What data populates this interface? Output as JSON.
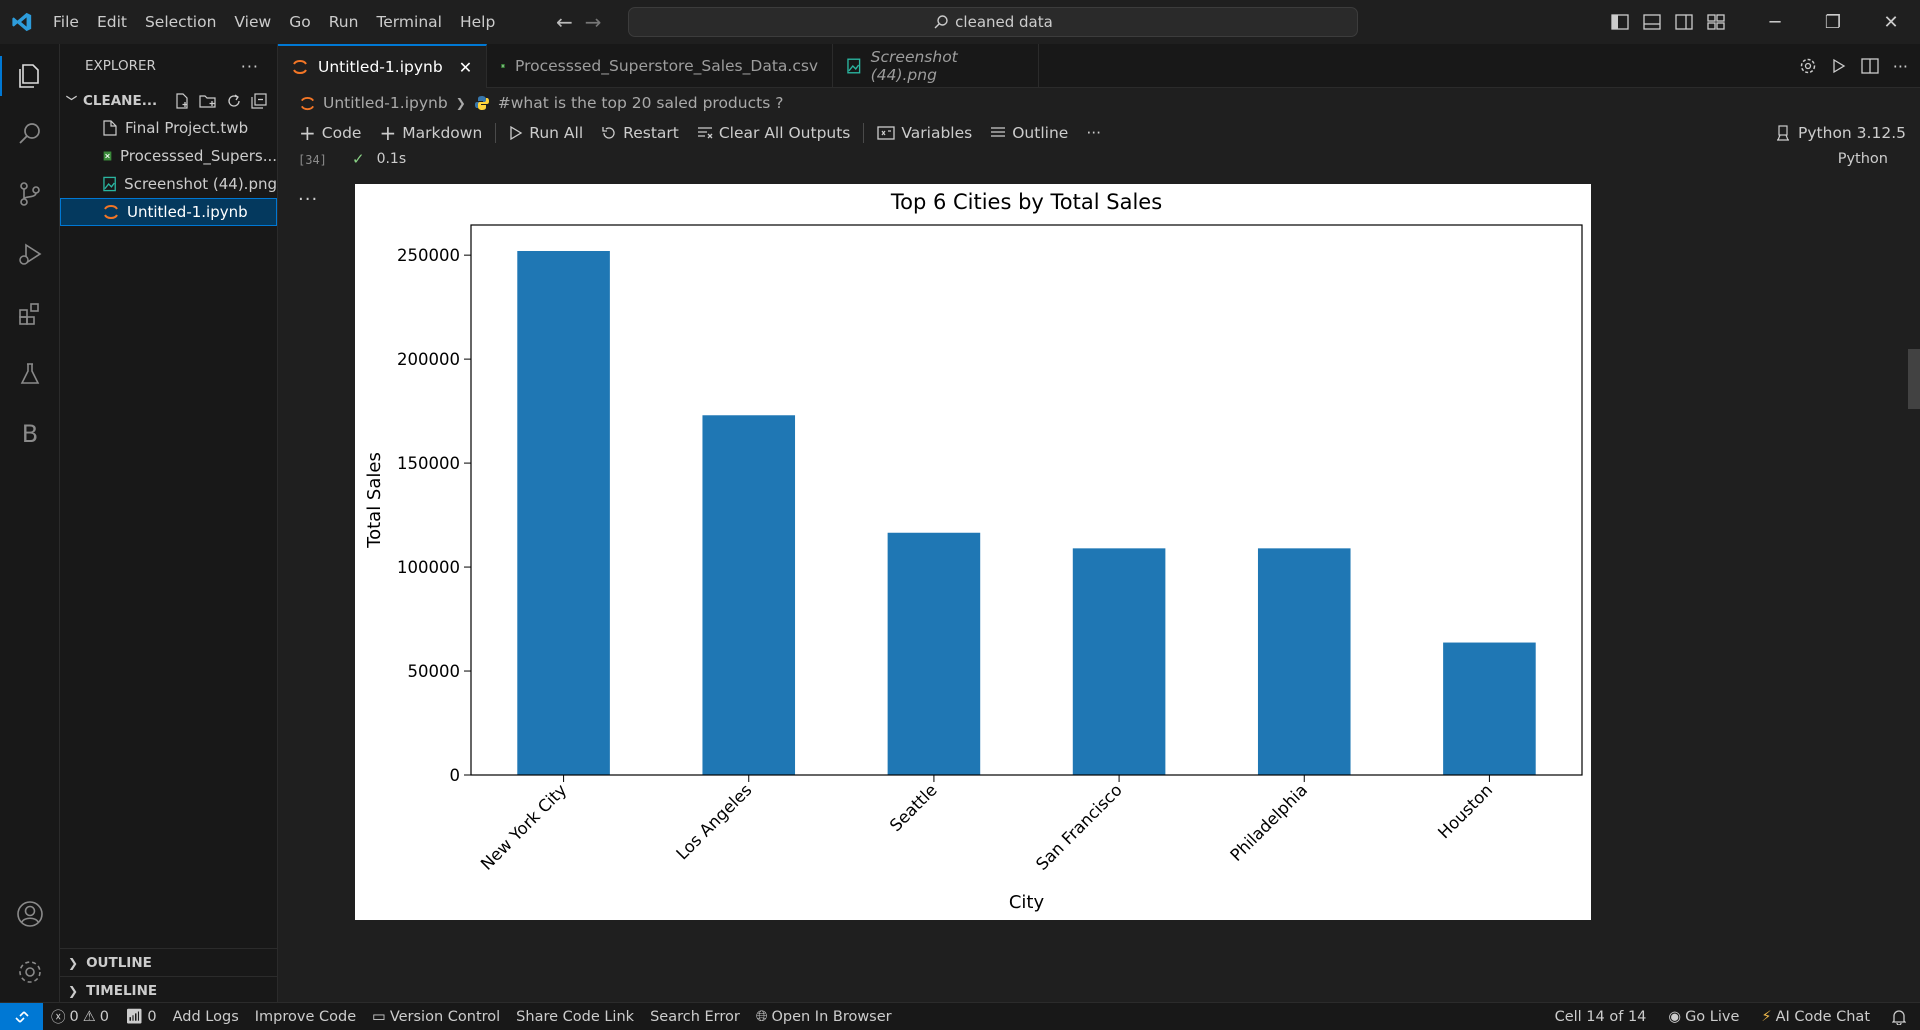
{
  "titlebar": {
    "menus": [
      "File",
      "Edit",
      "Selection",
      "View",
      "Go",
      "Run",
      "Terminal",
      "Help"
    ],
    "search_text": "cleaned data"
  },
  "sidebar": {
    "title": "EXPLORER",
    "folder": "CLEANE...",
    "files": [
      {
        "name": "Final Project.twb",
        "icon": "file-icon"
      },
      {
        "name": "Processsed_Supers...",
        "icon": "csv-icon"
      },
      {
        "name": "Screenshot (44).png",
        "icon": "image-icon"
      },
      {
        "name": "Untitled-1.ipynb",
        "icon": "jupyter-icon",
        "selected": true
      }
    ],
    "outline_label": "OUTLINE",
    "timeline_label": "TIMELINE"
  },
  "tabs": [
    {
      "label": "Untitled-1.ipynb",
      "active": true
    },
    {
      "label": "Processsed_Superstore_Sales_Data.csv"
    },
    {
      "label": "Screenshot (44).png"
    }
  ],
  "breadcrumb": {
    "file": "Untitled-1.ipynb",
    "cell": "#what is the top 20 saled products ?"
  },
  "toolbar": {
    "code": "Code",
    "markdown": "Markdown",
    "run_all": "Run All",
    "restart": "Restart",
    "clear_outputs": "Clear All Outputs",
    "variables": "Variables",
    "outline": "Outline",
    "more": "···",
    "kernel": "Python 3.12.5"
  },
  "cell": {
    "exec_count": "[34]",
    "duration": "0.1s",
    "language": "Python",
    "ellipsis": "..."
  },
  "chart_data": {
    "type": "bar",
    "title": "Top 6 Cities by Total Sales",
    "xlabel": "City",
    "ylabel": "Total Sales",
    "categories": [
      "New York City",
      "Los Angeles",
      "Seattle",
      "San Francisco",
      "Philadelphia",
      "Houston"
    ],
    "values": [
      252000,
      173000,
      116500,
      109000,
      109000,
      63700
    ],
    "yticks": [
      0,
      50000,
      100000,
      150000,
      200000,
      250000
    ],
    "ylim": [
      0,
      264500
    ],
    "color": "#1f77b4",
    "grid": false,
    "legend": false
  },
  "statusbar": {
    "errors": "0",
    "warnings": "0",
    "ports": "0",
    "add_logs": "Add Logs",
    "improve_code": "Improve Code",
    "version_control": "Version Control",
    "share_code": "Share Code Link",
    "search_error": "Search Error",
    "open_browser": "Open In Browser",
    "cell_position": "Cell 14 of 14",
    "go_live": "Go Live",
    "ai_chat": "AI Code Chat"
  },
  "colors": {
    "accent": "#0078d4",
    "background": "#1f1f1f",
    "sidebar": "#181818"
  }
}
